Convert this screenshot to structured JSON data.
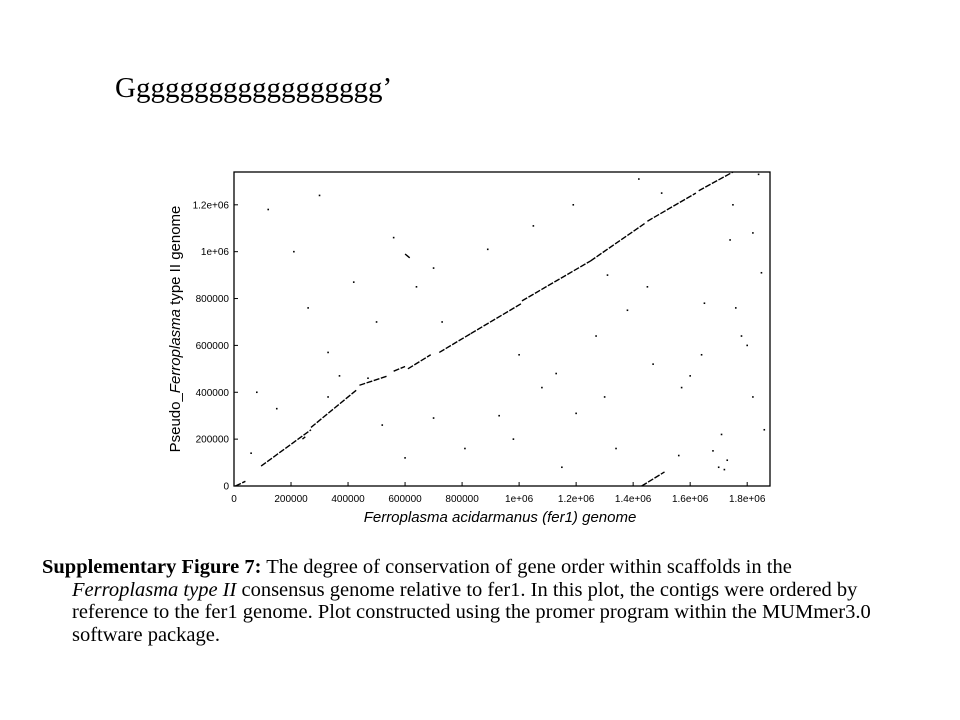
{
  "title": "Gggggggggggggggggg’",
  "caption": {
    "label": "Supplementary Figure 7:",
    "text_1": " The degree of conservation of gene order within scaffolds in the ",
    "italic": "Ferroplasma type II",
    "text_2": " consensus genome relative to fer1.  In this plot, the contigs were ordered by reference to the fer1 genome. Plot constructed using the promer program within the MUMmer3.0 software package."
  },
  "chart_data": {
    "type": "scatter",
    "xlabel": "Ferroplasma acidarmanus (fer1) genome",
    "ylabel_prefix": "Pseudo_",
    "ylabel_italic": "Ferroplasma",
    "ylabel_suffix": " type II genome",
    "xlim": [
      0,
      1880000
    ],
    "ylim": [
      0,
      1340000
    ],
    "xticks": [
      0,
      200000,
      400000,
      600000,
      800000,
      1000000,
      1200000,
      1400000,
      1600000,
      1800000
    ],
    "xtick_labels": [
      "0",
      "200000",
      "400000",
      "600000",
      "800000",
      "1e+06",
      "1.2e+06",
      "1.4e+06",
      "1.6e+06",
      "1.8e+06"
    ],
    "yticks": [
      0,
      200000,
      400000,
      600000,
      800000,
      1000000,
      1200000
    ],
    "ytick_labels": [
      "0",
      "200000",
      "400000",
      "600000",
      "800000",
      "1e+06",
      "1.2e+06"
    ],
    "grid": false,
    "series": [
      {
        "segments": [
          [
            [
              5000,
              0
            ],
            [
              40000,
              20000
            ]
          ],
          [
            [
              95000,
              85000
            ],
            [
              270000,
              240000
            ]
          ],
          [
            [
              270000,
              250000
            ],
            [
              430000,
              410000
            ]
          ],
          [
            [
              440000,
              430000
            ],
            [
              540000,
              470000
            ]
          ],
          [
            [
              560000,
              490000
            ],
            [
              600000,
              510000
            ]
          ],
          [
            [
              610000,
              500000
            ],
            [
              690000,
              560000
            ]
          ],
          [
            [
              720000,
              570000
            ],
            [
              830000,
              650000
            ]
          ],
          [
            [
              830000,
              650000
            ],
            [
              1010000,
              780000
            ]
          ],
          [
            [
              1010000,
              790000
            ],
            [
              1250000,
              960000
            ]
          ],
          [
            [
              1250000,
              960000
            ],
            [
              1440000,
              1120000
            ]
          ],
          [
            [
              1450000,
              1130000
            ],
            [
              1620000,
              1250000
            ]
          ],
          [
            [
              1630000,
              1260000
            ],
            [
              1750000,
              1340000
            ]
          ],
          [
            [
              1430000,
              0
            ],
            [
              1510000,
              60000
            ]
          ],
          [
            [
              600000,
              990000
            ],
            [
              620000,
              970000
            ]
          ],
          [
            [
              240000,
              200000
            ],
            [
              250000,
              210000
            ]
          ]
        ],
        "points": [
          [
            150000,
            330000
          ],
          [
            330000,
            570000
          ],
          [
            370000,
            470000
          ],
          [
            330000,
            380000
          ],
          [
            470000,
            460000
          ],
          [
            560000,
            1060000
          ],
          [
            700000,
            930000
          ],
          [
            730000,
            700000
          ],
          [
            810000,
            160000
          ],
          [
            930000,
            300000
          ],
          [
            1050000,
            1110000
          ],
          [
            1130000,
            480000
          ],
          [
            1200000,
            310000
          ],
          [
            1270000,
            640000
          ],
          [
            1310000,
            900000
          ],
          [
            1380000,
            750000
          ],
          [
            1450000,
            850000
          ],
          [
            1500000,
            1250000
          ],
          [
            1570000,
            420000
          ],
          [
            1640000,
            560000
          ],
          [
            1680000,
            150000
          ],
          [
            1700000,
            80000
          ],
          [
            1710000,
            220000
          ],
          [
            1720000,
            70000
          ],
          [
            1730000,
            110000
          ],
          [
            1750000,
            1200000
          ],
          [
            1780000,
            640000
          ],
          [
            1800000,
            600000
          ],
          [
            1820000,
            380000
          ],
          [
            1850000,
            910000
          ],
          [
            1840000,
            1330000
          ],
          [
            1860000,
            240000
          ],
          [
            120000,
            1180000
          ],
          [
            210000,
            1000000
          ],
          [
            260000,
            760000
          ],
          [
            520000,
            260000
          ],
          [
            600000,
            120000
          ],
          [
            700000,
            290000
          ],
          [
            980000,
            200000
          ],
          [
            1080000,
            420000
          ],
          [
            1150000,
            80000
          ],
          [
            1340000,
            160000
          ],
          [
            1470000,
            520000
          ],
          [
            1600000,
            470000
          ],
          [
            1760000,
            760000
          ],
          [
            60000,
            140000
          ],
          [
            80000,
            400000
          ],
          [
            420000,
            870000
          ],
          [
            890000,
            1010000
          ],
          [
            1420000,
            1310000
          ],
          [
            1740000,
            1050000
          ],
          [
            1650000,
            780000
          ],
          [
            1000000,
            560000
          ],
          [
            500000,
            700000
          ],
          [
            300000,
            1240000
          ],
          [
            640000,
            850000
          ],
          [
            1190000,
            1200000
          ],
          [
            1300000,
            380000
          ],
          [
            1560000,
            130000
          ],
          [
            1820000,
            1080000
          ]
        ]
      }
    ]
  }
}
